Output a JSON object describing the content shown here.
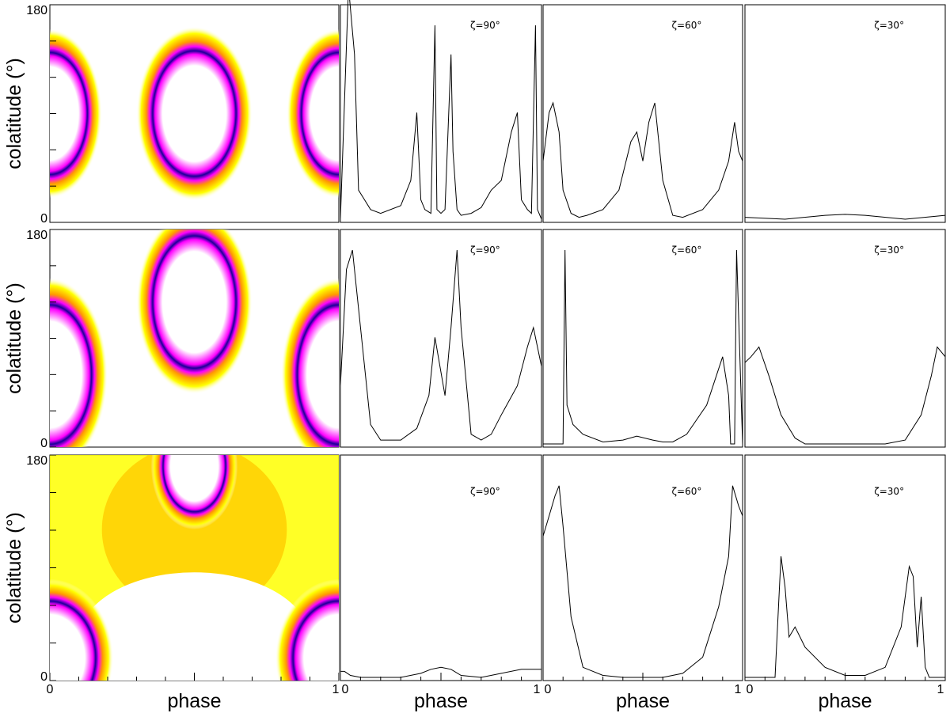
{
  "figure": {
    "ylabel": "colatitude (°)",
    "xlabel": "phase",
    "ytick_labels": [
      "0",
      "180"
    ],
    "xtick_labels": [
      "0",
      "1"
    ]
  },
  "colormap": [
    "#ffffff",
    "#ffff00",
    "#ff9900",
    "#ff00ff",
    "#1a0099"
  ],
  "chart_data": [
    {
      "type": "heatmap",
      "row": 1,
      "xlabel": "",
      "ylabel": "colatitude (°)",
      "xlim": [
        0,
        1
      ],
      "ylim": [
        0,
        180
      ],
      "rings": [
        {
          "cx": 0.0,
          "cy": 90,
          "rx": 0.09,
          "ry": 35
        },
        {
          "cx": 0.5,
          "cy": 90,
          "rx": 0.1,
          "ry": 36
        },
        {
          "cx": 1.0,
          "cy": 90,
          "rx": 0.09,
          "ry": 35
        }
      ]
    },
    {
      "type": "line",
      "row": 1,
      "annotation": "ζ=90°",
      "x": [
        0,
        0.04,
        0.07,
        0.09,
        0.12,
        0.15,
        0.2,
        0.3,
        0.35,
        0.38,
        0.4,
        0.42,
        0.45,
        0.47,
        0.48,
        0.5,
        0.52,
        0.55,
        0.56,
        0.58,
        0.6,
        0.65,
        0.7,
        0.75,
        0.8,
        0.85,
        0.88,
        0.9,
        0.93,
        0.95,
        0.97,
        0.98,
        1.0
      ],
      "y": [
        0,
        1.2,
        0.85,
        0.15,
        0.1,
        0.05,
        0.03,
        0.07,
        0.2,
        0.55,
        0.1,
        0.05,
        0.03,
        1.0,
        0.05,
        0.03,
        0.05,
        0.85,
        0.35,
        0.05,
        0.02,
        0.03,
        0.06,
        0.15,
        0.2,
        0.45,
        0.55,
        0.1,
        0.05,
        0.03,
        1.0,
        0.05,
        0
      ]
    },
    {
      "type": "line",
      "row": 1,
      "annotation": "ζ=60°",
      "x": [
        0,
        0.03,
        0.05,
        0.08,
        0.1,
        0.14,
        0.18,
        0.22,
        0.3,
        0.38,
        0.44,
        0.47,
        0.5,
        0.53,
        0.56,
        0.6,
        0.65,
        0.7,
        0.8,
        0.88,
        0.93,
        0.96,
        0.98,
        1.0
      ],
      "y": [
        0.3,
        0.55,
        0.6,
        0.45,
        0.15,
        0.03,
        0.01,
        0.02,
        0.05,
        0.15,
        0.4,
        0.45,
        0.3,
        0.5,
        0.6,
        0.2,
        0.02,
        0.01,
        0.05,
        0.15,
        0.3,
        0.5,
        0.35,
        0.3
      ]
    },
    {
      "type": "line",
      "row": 1,
      "annotation": "ζ=30°",
      "x": [
        0,
        0.2,
        0.4,
        0.5,
        0.6,
        0.8,
        1.0
      ],
      "y": [
        0.01,
        0,
        0.02,
        0.025,
        0.02,
        0,
        0.02
      ]
    },
    {
      "type": "heatmap",
      "row": 2,
      "xlabel": "",
      "ylabel": "colatitude (°)",
      "xlim": [
        0,
        1
      ],
      "ylim": [
        0,
        180
      ],
      "rings": [
        {
          "cx": 0.0,
          "cy": 60,
          "rx": 0.1,
          "ry": 40
        },
        {
          "cx": 0.5,
          "cy": 120,
          "rx": 0.1,
          "ry": 38
        },
        {
          "cx": 1.0,
          "cy": 60,
          "rx": 0.1,
          "ry": 40
        }
      ]
    },
    {
      "type": "line",
      "row": 2,
      "annotation": "ζ=90°",
      "x": [
        0,
        0.03,
        0.06,
        0.1,
        0.15,
        0.2,
        0.3,
        0.38,
        0.44,
        0.47,
        0.52,
        0.55,
        0.58,
        0.6,
        0.65,
        0.7,
        0.75,
        0.8,
        0.88,
        0.93,
        0.96,
        0.98,
        1.0
      ],
      "y": [
        0.3,
        0.9,
        1.0,
        0.6,
        0.1,
        0.02,
        0.02,
        0.08,
        0.25,
        0.55,
        0.25,
        0.6,
        1.0,
        0.6,
        0.05,
        0.02,
        0.05,
        0.15,
        0.3,
        0.5,
        0.6,
        0.5,
        0.4
      ]
    },
    {
      "type": "line",
      "row": 2,
      "annotation": "ζ=60°",
      "x": [
        0,
        0.05,
        0.1,
        0.11,
        0.12,
        0.15,
        0.2,
        0.3,
        0.4,
        0.47,
        0.55,
        0.6,
        0.65,
        0.72,
        0.82,
        0.9,
        0.93,
        0.94,
        0.96,
        0.97,
        1.0
      ],
      "y": [
        0,
        0,
        0,
        1.0,
        0.2,
        0.1,
        0.05,
        0.01,
        0.02,
        0.04,
        0.02,
        0.01,
        0.01,
        0.05,
        0.2,
        0.45,
        0.25,
        0,
        0,
        1.0,
        0
      ]
    },
    {
      "type": "line",
      "row": 2,
      "annotation": "ζ=30°",
      "x": [
        0,
        0.03,
        0.07,
        0.12,
        0.18,
        0.25,
        0.3,
        0.5,
        0.7,
        0.8,
        0.88,
        0.93,
        0.96,
        1.0
      ],
      "y": [
        0.42,
        0.45,
        0.5,
        0.35,
        0.15,
        0.03,
        0,
        0,
        0,
        0.02,
        0.15,
        0.35,
        0.5,
        0.45
      ]
    }
  ]
}
